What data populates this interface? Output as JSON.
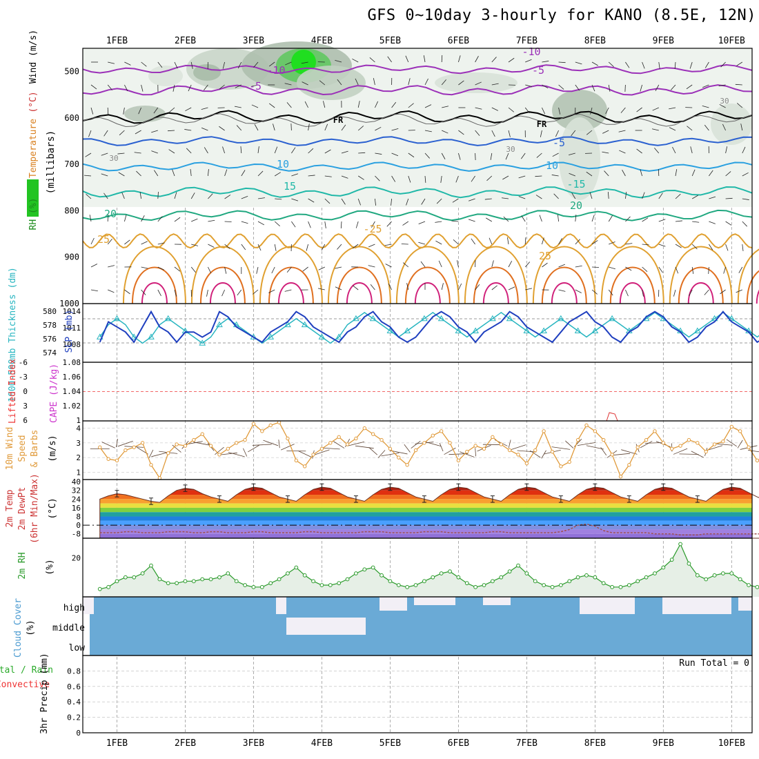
{
  "chart_data": {
    "type": "meteogram",
    "title": "GFS 0~10day 3-hourly for KANO (8.5E, 12N)",
    "dates": [
      "1FEB",
      "2FEB",
      "3FEB",
      "4FEB",
      "5FEB",
      "6FEB",
      "7FEB",
      "8FEB",
      "9FEB",
      "10FEB"
    ],
    "x_range_days": [
      0.5,
      10.3
    ],
    "panels": [
      {
        "id": "upper",
        "ylabels": [
          {
            "text": "RH (%)",
            "color": "#1a8a1a"
          },
          {
            "text": "Temperature",
            "color": "#d98020"
          },
          {
            "text": "(°C)",
            "color": "#cc3333"
          },
          {
            "text": "Wind (m/s)",
            "color": "#000000"
          },
          {
            "text": "(millibars)",
            "color": "#000000"
          }
        ],
        "yticks": [
          "500",
          "600",
          "700",
          "800",
          "900",
          "1000"
        ],
        "ylim": [
          450,
          1000
        ],
        "isotherm_labels": [
          "-10",
          "-10",
          "-5",
          "-5",
          "FR",
          "FR",
          "-5",
          "10",
          "10",
          "-15",
          "15",
          "20",
          "20",
          "-25",
          "25",
          "25"
        ],
        "rh_contour_labels": [
          "30",
          "30",
          "30"
        ],
        "isotherms_c": [
          -10,
          -5,
          0,
          5,
          10,
          15,
          20,
          25,
          30,
          35
        ]
      },
      {
        "id": "slp",
        "ylabel_left": "1000-500mb Thickness (dm)",
        "ylabel_right": "SLP (mb)",
        "left_ticks": [
          "580",
          "578",
          "576",
          "574"
        ],
        "right_ticks": [
          "1014",
          "1011",
          "1008"
        ],
        "slp_mb": [
          1008,
          1012,
          1011,
          1010,
          1008,
          1011,
          1014,
          1011,
          1010,
          1008,
          1010,
          1010,
          1009,
          1010,
          1014,
          1013,
          1011,
          1010,
          1009,
          1008,
          1010,
          1011,
          1012,
          1014,
          1013,
          1011,
          1010,
          1009,
          1008,
          1010,
          1011,
          1013,
          1014,
          1012,
          1011,
          1009,
          1008,
          1009,
          1011,
          1013,
          1014,
          1013,
          1011,
          1010,
          1008,
          1010,
          1011,
          1012,
          1014,
          1013,
          1011,
          1010,
          1009,
          1008,
          1010,
          1012,
          1013,
          1014,
          1012,
          1011,
          1009,
          1008,
          1010,
          1011,
          1013,
          1014,
          1013,
          1011,
          1010,
          1008,
          1009,
          1011,
          1012,
          1014,
          1012,
          1011,
          1010,
          1008,
          1009
        ],
        "thickness_dm": [
          576,
          578,
          579,
          578,
          576,
          575,
          576,
          578,
          579,
          578,
          577,
          576,
          575,
          576,
          578,
          579,
          578,
          577,
          576,
          575,
          576,
          577,
          578,
          579,
          578,
          577,
          576,
          575,
          576,
          578,
          579,
          580,
          579,
          578,
          577,
          576,
          577,
          578,
          579,
          580,
          579,
          578,
          577,
          576,
          577,
          578,
          579,
          580,
          579,
          578,
          577,
          576,
          577,
          578,
          579,
          578,
          577,
          576,
          577,
          578,
          579,
          578,
          577,
          578,
          579,
          580,
          579,
          578,
          577,
          576,
          577,
          578,
          579,
          580,
          579,
          578,
          577,
          576,
          577
        ]
      },
      {
        "id": "li",
        "ylabel_left": "Lifted Index",
        "ylabel_right": "CAPE (J/kg)",
        "left_ticks": [
          "-6",
          "-3",
          "0",
          "3",
          "6"
        ],
        "right_ticks": [
          "1.08",
          "1.06",
          "1.04",
          "1.02",
          "1"
        ],
        "reference_value": 0,
        "cape_jkg": [
          0,
          0,
          0,
          0,
          0,
          0,
          0,
          0,
          0,
          0,
          0,
          0,
          0,
          0,
          0,
          0,
          0,
          0,
          0,
          0,
          0,
          0,
          0,
          0,
          0,
          0,
          0,
          0,
          0,
          0,
          0,
          0,
          0,
          0,
          0,
          0,
          0,
          0,
          0,
          0,
          0,
          0,
          0,
          0,
          0,
          0,
          0,
          0,
          0,
          0,
          0,
          0,
          0,
          0,
          0,
          0,
          0,
          0,
          0,
          0,
          1.02,
          1.01,
          0,
          0,
          0,
          0,
          0,
          0,
          0,
          0,
          0,
          0,
          0,
          0,
          0,
          0,
          0,
          0,
          0
        ]
      },
      {
        "id": "wind",
        "ylabel_lines": [
          "10m Wind",
          "Speed",
          "& Barbs"
        ],
        "ylabel_unit": "(m/s)",
        "yticks": [
          "4",
          "3",
          "2",
          "1"
        ],
        "ylim": [
          0.5,
          4.5
        ],
        "speed_ms": [
          2.7,
          1.9,
          1.8,
          2.5,
          2.7,
          3.0,
          1.5,
          0.6,
          2.3,
          2.9,
          2.8,
          3.2,
          3.6,
          2.8,
          2.2,
          2.6,
          3.0,
          3.2,
          4.3,
          3.8,
          4.2,
          4.4,
          3.3,
          1.8,
          1.4,
          2.2,
          2.6,
          3.0,
          3.4,
          2.9,
          3.3,
          4.0,
          3.6,
          3.2,
          2.6,
          2.0,
          1.5,
          2.5,
          3.0,
          3.5,
          3.8,
          3.0,
          1.8,
          2.4,
          2.8,
          2.6,
          3.4,
          2.9,
          2.5,
          2.2,
          1.6,
          2.5,
          3.8,
          2.4,
          1.4,
          1.7,
          3.2,
          4.2,
          3.8,
          3.2,
          2.2,
          0.7,
          1.5,
          2.7,
          3.2,
          3.8,
          3.0,
          2.6,
          2.8,
          3.2,
          3.0,
          2.4,
          2.9,
          3.1,
          4.1,
          3.8,
          2.7,
          1.8,
          2.1
        ]
      },
      {
        "id": "temp",
        "ylabel_lines": [
          "2m Temp",
          "2m DewPt",
          "(6hr Min/Max)"
        ],
        "ylabel_unit": "(°C)",
        "yticks": [
          "40",
          "32",
          "24",
          "16",
          "8",
          "0",
          "-8"
        ],
        "ylim": [
          -12,
          42
        ],
        "temp_c": [
          24,
          27,
          29,
          28,
          26,
          24,
          22,
          21,
          27,
          32,
          34,
          33,
          29,
          26,
          24,
          22,
          28,
          33,
          35,
          34,
          30,
          26,
          24,
          22,
          28,
          33,
          35,
          34,
          30,
          26,
          24,
          22,
          28,
          33,
          35,
          34,
          30,
          26,
          24,
          22,
          28,
          33,
          35,
          34,
          30,
          26,
          24,
          22,
          28,
          33,
          35,
          34,
          30,
          26,
          24,
          22,
          28,
          33,
          35,
          34,
          30,
          26,
          24,
          22,
          28,
          33,
          35,
          34,
          30,
          26,
          24,
          22,
          28,
          33,
          35,
          34,
          30,
          26,
          23
        ],
        "dewpoint_c": [
          -7,
          -7,
          -7,
          -6,
          -6,
          -7,
          -7,
          -7,
          -6,
          -6,
          -6,
          -7,
          -7,
          -6,
          -6,
          -7,
          -7,
          -7,
          -6,
          -6,
          -7,
          -7,
          -7,
          -7,
          -6,
          -6,
          -7,
          -7,
          -7,
          -7,
          -7,
          -6,
          -6,
          -6,
          -7,
          -7,
          -7,
          -7,
          -6,
          -6,
          -6,
          -7,
          -7,
          -7,
          -7,
          -7,
          -6,
          -6,
          -7,
          -7,
          -7,
          -7,
          -7,
          -7,
          -6,
          -4,
          0,
          1,
          -1,
          -5,
          -7,
          -7,
          -7,
          -7,
          -7,
          -8,
          -8,
          -8,
          -9,
          -9,
          -9,
          -8,
          -8,
          -8,
          -8,
          -8,
          -8,
          -8,
          -8
        ]
      },
      {
        "id": "rh",
        "ylabel_left": "2m RH",
        "ylabel_unit": "(%)",
        "yticks": [
          "20"
        ],
        "ylim": [
          0,
          30
        ],
        "rh_pct": [
          4,
          5,
          8,
          10,
          10,
          12,
          16,
          9,
          7,
          7,
          8,
          8,
          9,
          9,
          10,
          12,
          8,
          6,
          5,
          5,
          7,
          9,
          12,
          15,
          11,
          8,
          6,
          6,
          7,
          9,
          12,
          14,
          15,
          11,
          8,
          6,
          5,
          6,
          8,
          10,
          12,
          13,
          10,
          7,
          5,
          6,
          8,
          10,
          13,
          16,
          12,
          8,
          6,
          5,
          6,
          8,
          10,
          11,
          10,
          7,
          5,
          5,
          6,
          8,
          10,
          12,
          15,
          19,
          27,
          17,
          11,
          9,
          11,
          12,
          12,
          9,
          6,
          5,
          6
        ]
      },
      {
        "id": "cloud",
        "ylabel_left": "Cloud Cover",
        "ylabel_unit": "(%)",
        "layers": [
          "high",
          "middle",
          "low"
        ]
      },
      {
        "id": "precip",
        "ylabel_left_lines": [
          "Total / Rain",
          "Convective"
        ],
        "ylabel_unit": "3hr Precip (mm)",
        "yticks": [
          "0.8",
          "0.6",
          "0.4",
          "0.2",
          "0"
        ],
        "ylim": [
          0,
          1.0
        ],
        "run_total_label": "Run Total = 0",
        "values_mm": [
          0,
          0,
          0,
          0,
          0,
          0,
          0,
          0,
          0,
          0,
          0,
          0,
          0,
          0,
          0,
          0,
          0,
          0,
          0,
          0,
          0,
          0,
          0,
          0,
          0,
          0,
          0,
          0,
          0,
          0,
          0,
          0,
          0,
          0,
          0,
          0,
          0,
          0,
          0,
          0,
          0,
          0,
          0,
          0,
          0,
          0,
          0,
          0,
          0,
          0,
          0,
          0,
          0,
          0,
          0,
          0,
          0,
          0,
          0,
          0,
          0,
          0,
          0,
          0,
          0,
          0,
          0,
          0,
          0,
          0,
          0,
          0,
          0,
          0,
          0,
          0,
          0,
          0,
          0
        ]
      }
    ]
  },
  "colors": {
    "slp_line": "#1f3fbf",
    "thickness_line": "#27b5c0",
    "wind_speed": "#e09a3a",
    "wind_barb": "#5a4030",
    "rh_line": "#2a9a2a",
    "cloud_fill": "#6aaad6",
    "lifted_index": "#ee3333",
    "cape": "#cc33cc"
  }
}
